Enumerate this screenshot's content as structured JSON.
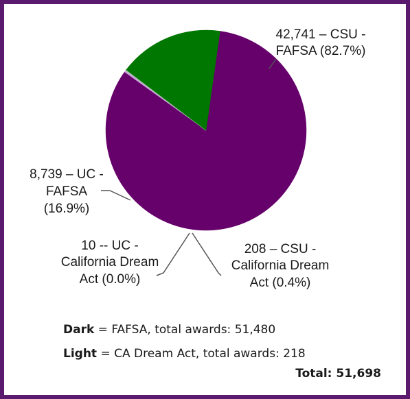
{
  "chart_data": {
    "type": "pie",
    "slices": [
      {
        "value": 42741,
        "line1": "42,741 – CSU -",
        "line2": "FAFSA (82.7%)",
        "line3": "",
        "color": "#66006b"
      },
      {
        "value": 208,
        "line1": "208 – CSU -",
        "line2": "California Dream",
        "line3": "Act (0.4%)",
        "color": "#c9a7d8"
      },
      {
        "value": 10,
        "line1": "10 -- UC -",
        "line2": "California Dream",
        "line3": "Act (0.0%)",
        "color": "#8fd08f"
      },
      {
        "value": 8739,
        "line1": "8,739 – UC -",
        "line2": "FAFSA",
        "line3": "(16.9%)",
        "color": "#007700"
      }
    ]
  },
  "legend": {
    "dark_key": "Dark",
    "dark_text": " = FAFSA, total awards: 51,480",
    "light_key": "Light",
    "light_text": " = CA Dream Act, total awards: 218"
  },
  "total": "Total:  51,698",
  "colors": {
    "border": "#5a1a6e",
    "leader": "#555555"
  }
}
